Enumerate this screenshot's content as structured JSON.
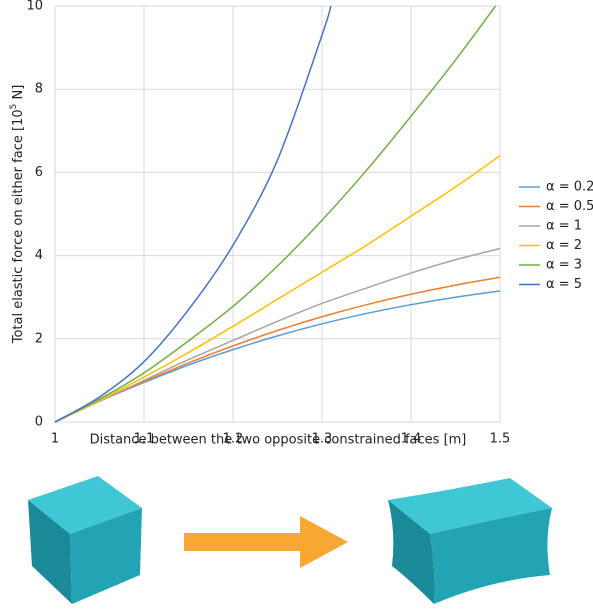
{
  "chart_data": {
    "type": "line",
    "x_label": "Distance between the two opposite constrained faces [m]",
    "y_label_parts": [
      "Total elastic force on either face [10",
      "5",
      " N]"
    ],
    "xlim": [
      1,
      1.5
    ],
    "xticks": [
      1,
      1.1,
      1.2,
      1.3,
      1.4,
      1.5
    ],
    "ylim": [
      0,
      10
    ],
    "yticks": [
      0,
      2,
      4,
      6,
      8,
      10
    ],
    "grid": true,
    "legend": "right",
    "series": [
      {
        "name": "α = 0.2",
        "color": "#5b9bd5",
        "x": [
          1,
          1.05,
          1.1,
          1.15,
          1.2,
          1.25,
          1.3,
          1.35,
          1.4,
          1.45,
          1.5
        ],
        "values": [
          0,
          0.5,
          0.95,
          1.37,
          1.74,
          2.07,
          2.36,
          2.61,
          2.82,
          3.0,
          3.15
        ]
      },
      {
        "name": "α = 0.5",
        "color": "#ed7d31",
        "x": [
          1,
          1.05,
          1.1,
          1.15,
          1.2,
          1.25,
          1.3,
          1.35,
          1.4,
          1.45,
          1.5
        ],
        "values": [
          0,
          0.5,
          0.97,
          1.42,
          1.83,
          2.2,
          2.53,
          2.82,
          3.07,
          3.29,
          3.48
        ]
      },
      {
        "name": "α = 1",
        "color": "#a5a5a5",
        "x": [
          1,
          1.05,
          1.1,
          1.15,
          1.2,
          1.25,
          1.3,
          1.35,
          1.4,
          1.45,
          1.5
        ],
        "values": [
          0,
          0.5,
          1.0,
          1.5,
          1.96,
          2.42,
          2.85,
          3.22,
          3.58,
          3.9,
          4.17
        ]
      },
      {
        "name": "α = 2",
        "color": "#ffc000",
        "x": [
          1,
          1.05,
          1.1,
          1.15,
          1.2,
          1.25,
          1.3,
          1.35,
          1.4,
          1.45,
          1.5
        ],
        "values": [
          0,
          0.52,
          1.08,
          1.67,
          2.3,
          2.95,
          3.6,
          4.25,
          4.95,
          5.65,
          6.4
        ]
      },
      {
        "name": "α = 3",
        "color": "#70ad47",
        "x": [
          1,
          1.05,
          1.1,
          1.15,
          1.2,
          1.25,
          1.3,
          1.35,
          1.4,
          1.45,
          1.495
        ],
        "values": [
          0,
          0.55,
          1.18,
          1.95,
          2.78,
          3.75,
          4.85,
          6.05,
          7.35,
          8.7,
          10
        ]
      },
      {
        "name": "α = 5",
        "color": "#4472c4",
        "x": [
          1,
          1.05,
          1.1,
          1.15,
          1.2,
          1.25,
          1.3,
          1.31
        ],
        "values": [
          0,
          0.6,
          1.45,
          2.7,
          4.25,
          6.3,
          9.3,
          10
        ]
      }
    ]
  }
}
